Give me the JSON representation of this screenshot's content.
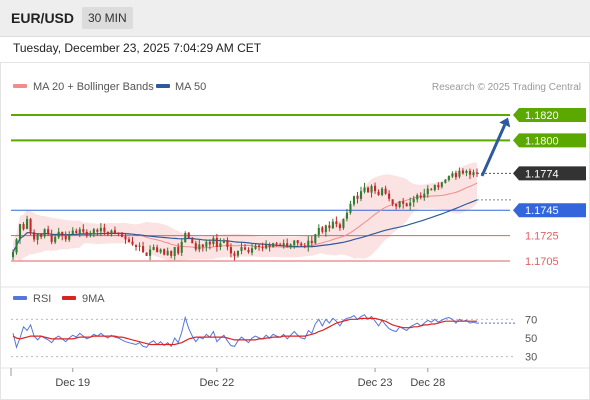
{
  "header": {
    "symbol": "EUR/USD",
    "timeframe": "30 MIN",
    "datetime": "Tuesday, December 23, 2025 7:04:29 AM CET"
  },
  "legend": {
    "items": [
      {
        "label": "MA 20 + Bollinger Bands",
        "color": "#f08c8c"
      },
      {
        "label": "MA 50",
        "color": "#2e5a9c"
      }
    ],
    "copyright": "Research © 2025 Trading Central"
  },
  "chart_data": [
    {
      "type": "candlestick",
      "ylim": [
        1.169,
        1.1835
      ],
      "grid": false,
      "current_price": {
        "label": "1.1774",
        "value": 1.1774
      },
      "levels": [
        {
          "label": "1.1820",
          "value": 1.182,
          "color": "#5aa800",
          "kind": "resistance-target"
        },
        {
          "label": "1.1800",
          "value": 1.18,
          "color": "#5aa800",
          "kind": "resistance"
        },
        {
          "label": "1.1745",
          "value": 1.1745,
          "color": "#3366dd",
          "kind": "pivot"
        },
        {
          "label": "1.1725",
          "value": 1.1725,
          "color": "#e06060",
          "kind": "support"
        },
        {
          "label": "1.1705",
          "value": 1.1705,
          "color": "#e06060",
          "kind": "support"
        }
      ],
      "arrow": {
        "from": 1.1772,
        "to": 1.1818,
        "direction": "up"
      },
      "closes": [
        1.1712,
        1.1722,
        1.1734,
        1.173,
        1.1738,
        1.1728,
        1.1722,
        1.1726,
        1.1724,
        1.173,
        1.1726,
        1.172,
        1.1724,
        1.1728,
        1.1725,
        1.1722,
        1.1726,
        1.1729,
        1.1727,
        1.173,
        1.1728,
        1.1725,
        1.1727,
        1.173,
        1.1728,
        1.1731,
        1.1728,
        1.1726,
        1.1729,
        1.1727,
        1.1726,
        1.1724,
        1.1722,
        1.172,
        1.1718,
        1.1716,
        1.1717,
        1.1712,
        1.1709,
        1.1714,
        1.1716,
        1.1712,
        1.1714,
        1.171,
        1.1713,
        1.1709,
        1.1716,
        1.1711,
        1.172,
        1.1727,
        1.1723,
        1.1719,
        1.1714,
        1.1718,
        1.1716,
        1.172,
        1.1718,
        1.1723,
        1.1716,
        1.1719,
        1.1721,
        1.1716,
        1.1711,
        1.1709,
        1.1713,
        1.1716,
        1.1714,
        1.1712,
        1.1715,
        1.1717,
        1.1716,
        1.1715,
        1.1718,
        1.1716,
        1.1719,
        1.1718,
        1.1717,
        1.1719,
        1.1716,
        1.1718,
        1.1721,
        1.1719,
        1.1717,
        1.1716,
        1.1721,
        1.1719,
        1.1726,
        1.1731,
        1.1728,
        1.1733,
        1.1731,
        1.1736,
        1.1734,
        1.1731,
        1.1738,
        1.1743,
        1.175,
        1.1756,
        1.1754,
        1.176,
        1.1763,
        1.1759,
        1.1764,
        1.176,
        1.1757,
        1.1762,
        1.1758,
        1.1754,
        1.175,
        1.1748,
        1.1752,
        1.175,
        1.1748,
        1.1751,
        1.1754,
        1.1757,
        1.1755,
        1.1758,
        1.1762,
        1.1761,
        1.1765,
        1.1763,
        1.1767,
        1.1769,
        1.1772,
        1.1774,
        1.1771,
        1.1776,
        1.1774,
        1.1776,
        1.1773,
        1.1775,
        1.1774
      ]
    },
    {
      "type": "line",
      "series": [
        {
          "name": "RSI",
          "color": "#5577dd"
        },
        {
          "name": "9MA",
          "color": "#dd2222"
        }
      ],
      "ylim": [
        20,
        80
      ],
      "y_ticks": [
        "70",
        "50",
        "30"
      ],
      "reference_lines": [
        70,
        30
      ],
      "rsi": [
        55,
        40,
        50,
        62,
        58,
        64,
        52,
        48,
        52,
        50,
        48,
        45,
        50,
        52,
        49,
        46,
        50,
        53,
        51,
        55,
        52,
        49,
        51,
        54,
        52,
        55,
        52,
        50,
        53,
        51,
        50,
        48,
        46,
        45,
        44,
        43,
        45,
        41,
        40,
        45,
        47,
        43,
        46,
        42,
        45,
        41,
        50,
        45,
        56,
        72,
        60,
        52,
        46,
        51,
        49,
        54,
        51,
        57,
        46,
        50,
        53,
        47,
        42,
        41,
        47,
        51,
        48,
        45,
        50,
        52,
        50,
        49,
        53,
        50,
        54,
        52,
        51,
        54,
        49,
        53,
        57,
        53,
        50,
        49,
        58,
        55,
        65,
        70,
        63,
        70,
        66,
        71,
        68,
        63,
        69,
        71,
        72,
        74,
        70,
        73,
        75,
        70,
        73,
        68,
        63,
        69,
        64,
        60,
        58,
        57,
        62,
        60,
        58,
        62,
        64,
        66,
        63,
        66,
        69,
        67,
        70,
        67,
        69,
        71,
        72,
        70,
        66,
        70,
        68,
        69,
        66,
        67,
        66
      ],
      "ma9": [
        52,
        50,
        49,
        50,
        51,
        52,
        52,
        52,
        52,
        51,
        50,
        49,
        49,
        49,
        49,
        49,
        49,
        49,
        50,
        51,
        51,
        51,
        51,
        52,
        52,
        52,
        52,
        52,
        52,
        52,
        51,
        51,
        50,
        49,
        48,
        47,
        46,
        45,
        44,
        43,
        43,
        43,
        43,
        43,
        43,
        43,
        43,
        44,
        45,
        47,
        49,
        50,
        51,
        51,
        51,
        51,
        51,
        51,
        51,
        51,
        51,
        50,
        49,
        48,
        48,
        48,
        48,
        48,
        48,
        48,
        49,
        49,
        50,
        50,
        51,
        51,
        51,
        52,
        52,
        52,
        52,
        52,
        52,
        52,
        53,
        54,
        55,
        57,
        58,
        60,
        62,
        64,
        66,
        67,
        68,
        69,
        70,
        70,
        70,
        71,
        71,
        71,
        71,
        71,
        70,
        69,
        68,
        66,
        64,
        63,
        62,
        61,
        61,
        61,
        62,
        62,
        63,
        64,
        64,
        65,
        65,
        66,
        67,
        68,
        68,
        68,
        68,
        68,
        68,
        68,
        68,
        68,
        68
      ]
    }
  ],
  "x_axis": {
    "ticks": [
      {
        "label": "Dec 19",
        "index": 17
      },
      {
        "label": "Dec 22",
        "index": 58
      },
      {
        "label": "Dec 23",
        "index": 103
      },
      {
        "label": "Dec 28",
        "index": 118
      }
    ]
  }
}
